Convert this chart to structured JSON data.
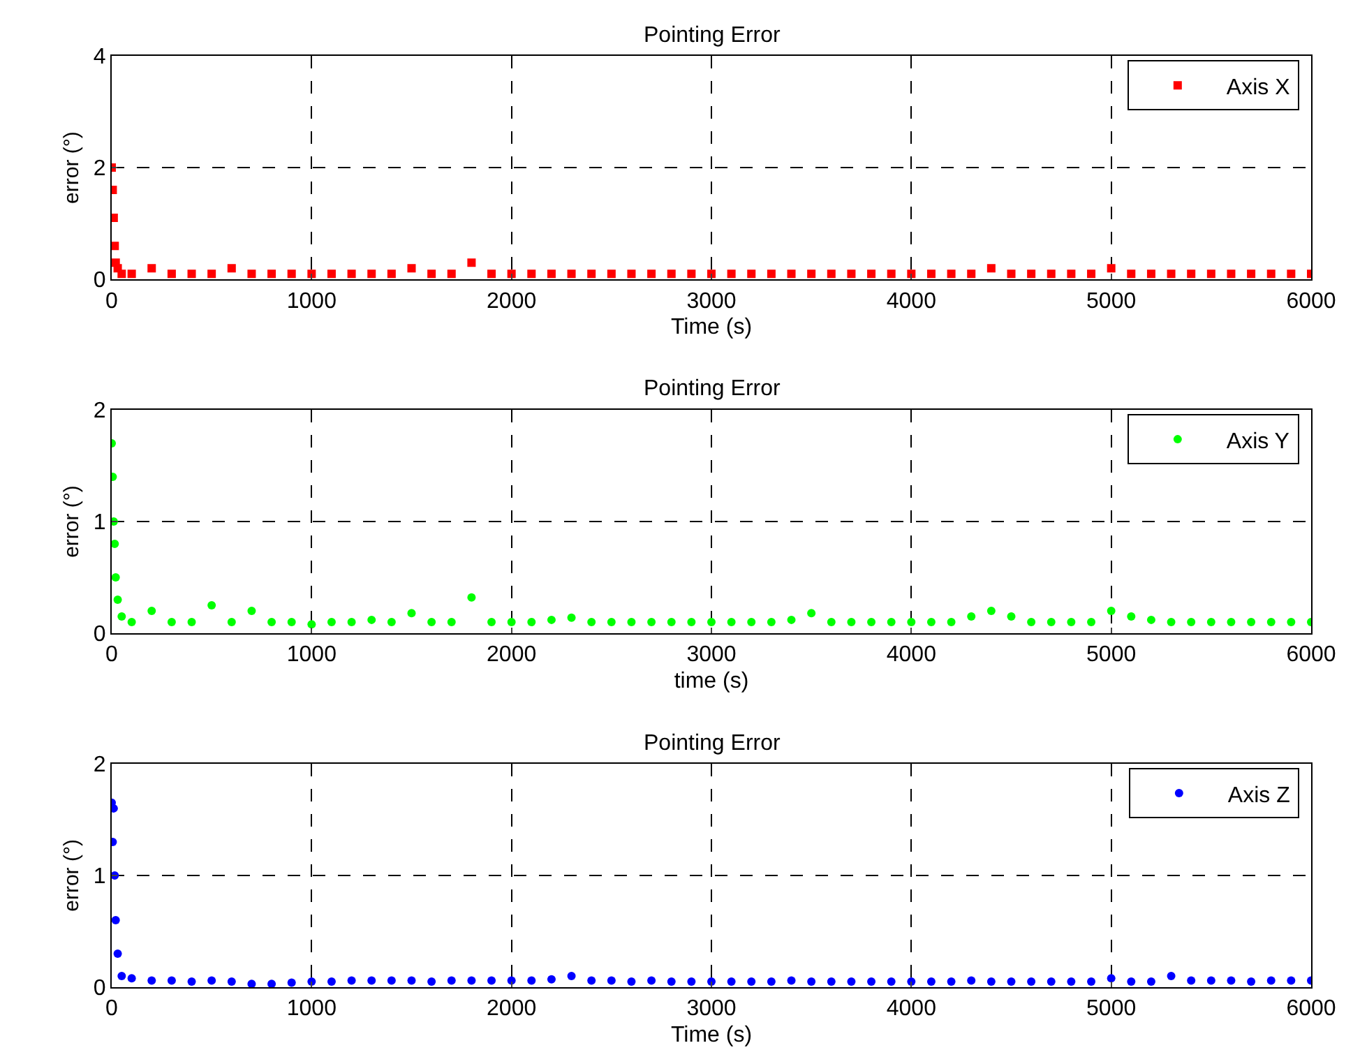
{
  "chart_data": [
    {
      "type": "scatter",
      "title": "Pointing Error",
      "xlabel": "Time (s)",
      "ylabel": "error (°)",
      "xlim": [
        0,
        6000
      ],
      "xticks": [
        0,
        1000,
        2000,
        3000,
        4000,
        5000,
        6000
      ],
      "ylim": [
        0,
        4
      ],
      "yticks": [
        0,
        2,
        4
      ],
      "grid": true,
      "legend": "top right",
      "marker": "square",
      "x": [
        0,
        5,
        10,
        15,
        20,
        30,
        50,
        100,
        200,
        300,
        400,
        500,
        600,
        700,
        800,
        900,
        1000,
        1100,
        1200,
        1300,
        1400,
        1500,
        1600,
        1700,
        1800,
        1900,
        2000,
        2100,
        2200,
        2300,
        2400,
        2500,
        2600,
        2700,
        2800,
        2900,
        3000,
        3100,
        3200,
        3300,
        3400,
        3500,
        3600,
        3700,
        3800,
        3900,
        4000,
        4100,
        4200,
        4300,
        4400,
        4500,
        4600,
        4700,
        4800,
        4900,
        5000,
        5100,
        5200,
        5300,
        5400,
        5500,
        5600,
        5700,
        5800,
        5900,
        6000
      ],
      "series": [
        {
          "name": "Axis X",
          "color": "#ff0000",
          "values": [
            2.0,
            1.6,
            1.1,
            0.6,
            0.3,
            0.2,
            0.1,
            0.1,
            0.2,
            0.1,
            0.1,
            0.1,
            0.2,
            0.1,
            0.1,
            0.1,
            0.1,
            0.1,
            0.1,
            0.1,
            0.1,
            0.2,
            0.1,
            0.1,
            0.3,
            0.1,
            0.1,
            0.1,
            0.1,
            0.1,
            0.1,
            0.1,
            0.1,
            0.1,
            0.1,
            0.1,
            0.1,
            0.1,
            0.1,
            0.1,
            0.1,
            0.1,
            0.1,
            0.1,
            0.1,
            0.1,
            0.1,
            0.1,
            0.1,
            0.1,
            0.2,
            0.1,
            0.1,
            0.1,
            0.1,
            0.1,
            0.2,
            0.1,
            0.1,
            0.1,
            0.1,
            0.1,
            0.1,
            0.1,
            0.1,
            0.1,
            0.1
          ]
        }
      ]
    },
    {
      "type": "scatter",
      "title": "Pointing Error",
      "xlabel": "time (s)",
      "ylabel": "error (°)",
      "xlim": [
        0,
        6000
      ],
      "xticks": [
        0,
        1000,
        2000,
        3000,
        4000,
        5000,
        6000
      ],
      "ylim": [
        0,
        2
      ],
      "yticks": [
        0,
        1,
        2
      ],
      "grid": true,
      "legend": "top right",
      "marker": "circle",
      "x": [
        0,
        5,
        10,
        15,
        20,
        30,
        50,
        100,
        200,
        300,
        400,
        500,
        600,
        700,
        800,
        900,
        1000,
        1100,
        1200,
        1300,
        1400,
        1500,
        1600,
        1700,
        1800,
        1900,
        2000,
        2100,
        2200,
        2300,
        2400,
        2500,
        2600,
        2700,
        2800,
        2900,
        3000,
        3100,
        3200,
        3300,
        3400,
        3500,
        3600,
        3700,
        3800,
        3900,
        4000,
        4100,
        4200,
        4300,
        4400,
        4500,
        4600,
        4700,
        4800,
        4900,
        5000,
        5100,
        5200,
        5300,
        5400,
        5500,
        5600,
        5700,
        5800,
        5900,
        6000
      ],
      "series": [
        {
          "name": "Axis Y",
          "color": "#00ff00",
          "values": [
            1.7,
            1.4,
            1.0,
            0.8,
            0.5,
            0.3,
            0.15,
            0.1,
            0.2,
            0.1,
            0.1,
            0.25,
            0.1,
            0.2,
            0.1,
            0.1,
            0.08,
            0.1,
            0.1,
            0.12,
            0.1,
            0.18,
            0.1,
            0.1,
            0.32,
            0.1,
            0.1,
            0.1,
            0.12,
            0.14,
            0.1,
            0.1,
            0.1,
            0.1,
            0.1,
            0.1,
            0.1,
            0.1,
            0.1,
            0.1,
            0.12,
            0.18,
            0.1,
            0.1,
            0.1,
            0.1,
            0.1,
            0.1,
            0.1,
            0.15,
            0.2,
            0.15,
            0.1,
            0.1,
            0.1,
            0.1,
            0.2,
            0.15,
            0.12,
            0.1,
            0.1,
            0.1,
            0.1,
            0.1,
            0.1,
            0.1,
            0.1
          ]
        }
      ]
    },
    {
      "type": "scatter",
      "title": "Pointing Error",
      "xlabel": "Time (s)",
      "ylabel": "error (°)",
      "xlim": [
        0,
        6000
      ],
      "xticks": [
        0,
        1000,
        2000,
        3000,
        4000,
        5000,
        6000
      ],
      "ylim": [
        0,
        2
      ],
      "yticks": [
        0,
        1,
        2
      ],
      "grid": true,
      "legend": "top right",
      "marker": "circle",
      "x": [
        0,
        5,
        10,
        15,
        20,
        30,
        50,
        100,
        200,
        300,
        400,
        500,
        600,
        700,
        800,
        900,
        1000,
        1100,
        1200,
        1300,
        1400,
        1500,
        1600,
        1700,
        1800,
        1900,
        2000,
        2100,
        2200,
        2300,
        2400,
        2500,
        2600,
        2700,
        2800,
        2900,
        3000,
        3100,
        3200,
        3300,
        3400,
        3500,
        3600,
        3700,
        3800,
        3900,
        4000,
        4100,
        4200,
        4300,
        4400,
        4500,
        4600,
        4700,
        4800,
        4900,
        5000,
        5100,
        5200,
        5300,
        5400,
        5500,
        5600,
        5700,
        5800,
        5900,
        6000
      ],
      "series": [
        {
          "name": "Axis Z",
          "color": "#0000ff",
          "values": [
            1.65,
            1.3,
            1.6,
            1.0,
            0.6,
            0.3,
            0.1,
            0.08,
            0.06,
            0.06,
            0.05,
            0.06,
            0.05,
            0.03,
            0.03,
            0.04,
            0.05,
            0.05,
            0.06,
            0.06,
            0.06,
            0.06,
            0.05,
            0.06,
            0.06,
            0.06,
            0.06,
            0.06,
            0.07,
            0.1,
            0.06,
            0.06,
            0.05,
            0.06,
            0.05,
            0.05,
            0.05,
            0.05,
            0.05,
            0.05,
            0.06,
            0.05,
            0.05,
            0.05,
            0.05,
            0.05,
            0.05,
            0.05,
            0.05,
            0.06,
            0.05,
            0.05,
            0.05,
            0.05,
            0.05,
            0.05,
            0.08,
            0.05,
            0.05,
            0.1,
            0.06,
            0.06,
            0.06,
            0.05,
            0.06,
            0.06,
            0.06
          ]
        }
      ]
    }
  ]
}
